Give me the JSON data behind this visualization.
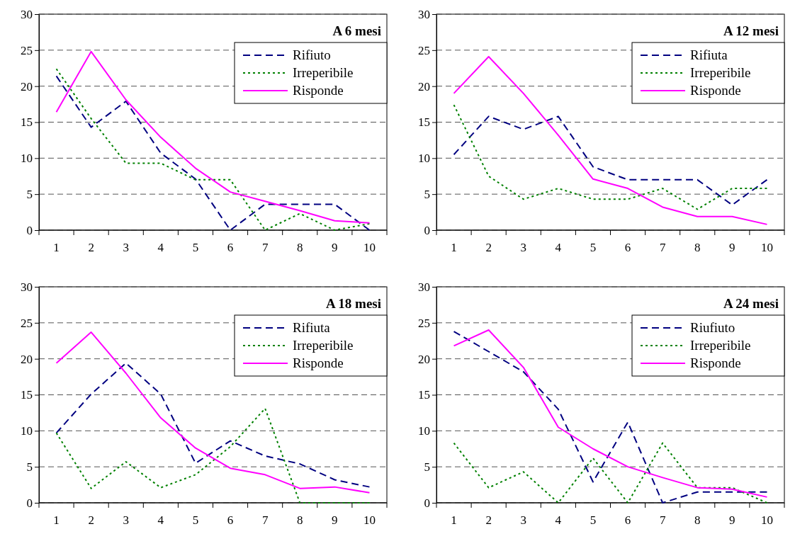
{
  "chart_data": [
    {
      "type": "line",
      "title": "A 6 mesi",
      "categories": [
        "1",
        "2",
        "3",
        "4",
        "5",
        "6",
        "7",
        "8",
        "9",
        "10"
      ],
      "ylim": [
        0,
        30
      ],
      "yticks": [
        0,
        5,
        10,
        15,
        20,
        25,
        30
      ],
      "grid": "y",
      "legend": "top right",
      "series": [
        {
          "name": "Rifiuto",
          "color": "#000080",
          "line_style": "dashed",
          "values": [
            21.4,
            14.3,
            17.9,
            10.7,
            7.1,
            0,
            3.6,
            3.6,
            3.6,
            0
          ]
        },
        {
          "name": "Irreperibile",
          "color": "#008000",
          "line_style": "dotted",
          "values": [
            22.4,
            15.5,
            9.3,
            9.3,
            7.0,
            7.0,
            0,
            2.3,
            0,
            0.9
          ]
        },
        {
          "name": "Risponde",
          "color": "#ff00ff",
          "line_style": "solid",
          "values": [
            16.4,
            24.8,
            18.1,
            12.9,
            8.6,
            5.3,
            4.0,
            2.7,
            1.3,
            1.0
          ]
        }
      ]
    },
    {
      "type": "line",
      "title": "A 12 mesi",
      "categories": [
        "1",
        "2",
        "3",
        "4",
        "5",
        "6",
        "7",
        "8",
        "9",
        "10"
      ],
      "ylim": [
        0,
        30
      ],
      "yticks": [
        0,
        5,
        10,
        15,
        20,
        25,
        30
      ],
      "grid": "y",
      "legend": "top right",
      "series": [
        {
          "name": "Rifiuta",
          "color": "#000080",
          "line_style": "dashed",
          "values": [
            10.5,
            15.8,
            14.0,
            15.8,
            8.8,
            7.0,
            7.0,
            7.0,
            3.5,
            7.0
          ]
        },
        {
          "name": "Irreperibile",
          "color": "#008000",
          "line_style": "dotted",
          "values": [
            17.4,
            7.5,
            4.3,
            5.8,
            4.3,
            4.3,
            5.8,
            2.9,
            5.8,
            5.8
          ]
        },
        {
          "name": "Risponde",
          "color": "#ff00ff",
          "line_style": "solid",
          "values": [
            19.0,
            24.1,
            19.0,
            13.2,
            7.1,
            5.8,
            3.2,
            1.9,
            1.9,
            0.8
          ]
        }
      ]
    },
    {
      "type": "line",
      "title": "A 18 mesi",
      "categories": [
        "1",
        "2",
        "3",
        "4",
        "5",
        "6",
        "7",
        "8",
        "9",
        "10"
      ],
      "ylim": [
        0,
        30
      ],
      "yticks": [
        0,
        5,
        10,
        15,
        20,
        25,
        30
      ],
      "grid": "y",
      "legend": "top right",
      "series": [
        {
          "name": "Rifiuta",
          "color": "#000080",
          "line_style": "dashed",
          "values": [
            9.7,
            15.1,
            19.4,
            15.1,
            5.5,
            8.6,
            6.5,
            5.4,
            3.2,
            2.2
          ]
        },
        {
          "name": "Irreperibile",
          "color": "#008000",
          "line_style": "dotted",
          "values": [
            9.7,
            2.0,
            5.7,
            2.1,
            3.9,
            7.8,
            13.1,
            0,
            0,
            0
          ]
        },
        {
          "name": "Risponde",
          "color": "#ff00ff",
          "line_style": "solid",
          "values": [
            19.4,
            23.7,
            18.0,
            11.8,
            7.6,
            4.8,
            3.9,
            2.0,
            2.2,
            1.4
          ]
        }
      ]
    },
    {
      "type": "line",
      "title": "A 24 mesi",
      "categories": [
        "1",
        "2",
        "3",
        "4",
        "5",
        "6",
        "7",
        "8",
        "9",
        "10"
      ],
      "ylim": [
        0,
        30
      ],
      "yticks": [
        0,
        5,
        10,
        15,
        20,
        25,
        30
      ],
      "grid": "y",
      "legend": "top right",
      "series": [
        {
          "name": "Riufiuto",
          "color": "#000080",
          "line_style": "dashed",
          "values": [
            23.8,
            21.0,
            18.2,
            13.0,
            2.9,
            11.2,
            0,
            1.5,
            1.5,
            1.5
          ]
        },
        {
          "name": "Irreperibile",
          "color": "#008000",
          "line_style": "dotted",
          "values": [
            8.3,
            2.1,
            4.3,
            0,
            6.2,
            0,
            8.3,
            2.1,
            2.1,
            0
          ]
        },
        {
          "name": "Risponde",
          "color": "#ff00ff",
          "line_style": "solid",
          "values": [
            21.8,
            24.0,
            18.8,
            10.5,
            7.5,
            5.0,
            3.5,
            2.1,
            1.9,
            0.8
          ]
        }
      ]
    }
  ]
}
